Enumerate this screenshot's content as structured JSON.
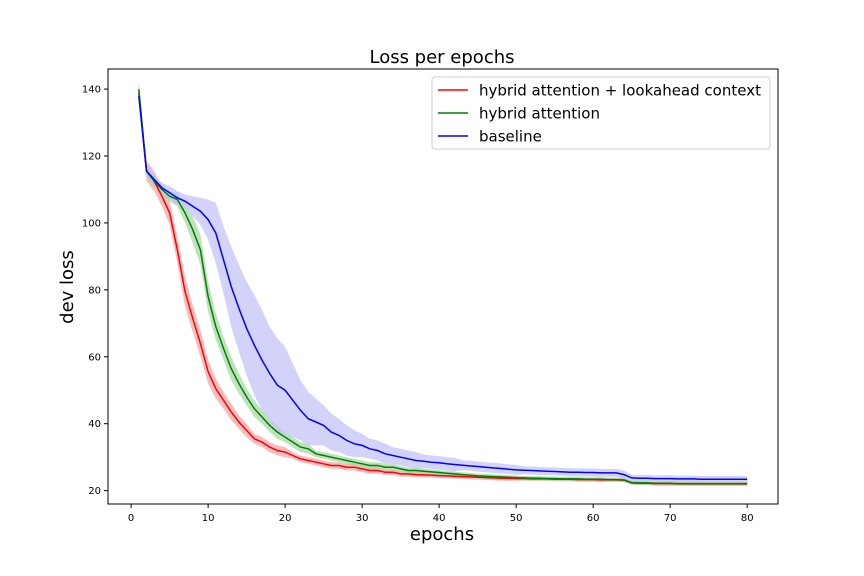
{
  "chart_data": {
    "type": "line",
    "title": "Loss per epochs",
    "xlabel": "epochs",
    "ylabel": "dev loss",
    "xlim": [
      -3,
      84
    ],
    "ylim": [
      16,
      146
    ],
    "xticks": [
      0,
      10,
      20,
      30,
      40,
      50,
      60,
      70,
      80
    ],
    "yticks": [
      20,
      40,
      60,
      80,
      100,
      120,
      140
    ],
    "grid": false,
    "legend_position": "top-right",
    "x": [
      1,
      2,
      3,
      4,
      5,
      6,
      7,
      8,
      9,
      10,
      11,
      12,
      13,
      14,
      15,
      16,
      17,
      18,
      19,
      20,
      21,
      22,
      23,
      24,
      25,
      26,
      27,
      28,
      29,
      30,
      31,
      32,
      33,
      34,
      35,
      36,
      37,
      38,
      39,
      40,
      41,
      42,
      43,
      44,
      45,
      46,
      47,
      48,
      49,
      50,
      51,
      52,
      53,
      54,
      55,
      56,
      57,
      58,
      59,
      60,
      61,
      62,
      63,
      64,
      65,
      66,
      67,
      68,
      69,
      70,
      71,
      72,
      73,
      74,
      75,
      76,
      77,
      78,
      79,
      80
    ],
    "series": [
      {
        "name": "hybrid attention + lookahead context",
        "color": "#ff0000",
        "fill": "#f4a6a6",
        "values": [
          139,
          115.5,
          112.5,
          108,
          103,
          92,
          79.5,
          71.5,
          64,
          55.5,
          50.5,
          47,
          43.5,
          40.5,
          38,
          35.5,
          34.5,
          33,
          32,
          31.5,
          30.5,
          29.5,
          29,
          28.5,
          28,
          27.5,
          27.5,
          27,
          27,
          26.5,
          26,
          26,
          25.5,
          25.5,
          25,
          25,
          24.8,
          24.7,
          24.6,
          24.5,
          24.4,
          24.3,
          24.2,
          24.1,
          24,
          23.9,
          23.8,
          23.7,
          23.7,
          23.6,
          23.6,
          23.5,
          23.5,
          23.5,
          23.4,
          23.4,
          23.4,
          23.3,
          23.3,
          23.3,
          23.2,
          23.2,
          23.2,
          23.1,
          22.3,
          22.2,
          22.2,
          22.1,
          22.1,
          22.1,
          22,
          22,
          22,
          22,
          22,
          22,
          22,
          22,
          22,
          22
        ],
        "band": [
          3,
          3,
          3,
          3,
          3.5,
          4,
          4.5,
          4,
          4,
          3.5,
          3,
          2.5,
          2.5,
          2,
          2,
          1.5,
          1.5,
          1.5,
          1.5,
          1.5,
          1,
          1,
          1,
          1,
          1,
          1,
          1,
          1,
          1,
          1,
          1,
          1,
          0.8,
          0.8,
          0.8,
          0.8,
          0.8,
          0.8,
          0.8,
          0.8,
          0.7,
          0.7,
          0.7,
          0.7,
          0.7,
          0.7,
          0.7,
          0.7,
          0.7,
          0.7,
          0.6,
          0.6,
          0.6,
          0.6,
          0.6,
          0.6,
          0.6,
          0.6,
          0.6,
          0.6,
          0.6,
          0.6,
          0.6,
          0.6,
          0.6,
          0.6,
          0.6,
          0.6,
          0.6,
          0.6,
          0.6,
          0.6,
          0.6,
          0.6,
          0.6,
          0.6,
          0.6,
          0.6,
          0.6,
          0.6
        ]
      },
      {
        "name": "hybrid attention",
        "color": "#008000",
        "fill": "#a8d8a8",
        "values": [
          140,
          115.5,
          112.5,
          110,
          108,
          107,
          103,
          98,
          92,
          78,
          69,
          62.5,
          56.5,
          52,
          48,
          44.5,
          42,
          39.5,
          37.5,
          36,
          34.5,
          33,
          32.5,
          31,
          30.5,
          30,
          29.5,
          29,
          28.5,
          28,
          27.5,
          27.5,
          27,
          27,
          26.5,
          26,
          26,
          25.8,
          25.6,
          25.4,
          25.2,
          25,
          24.8,
          24.6,
          24.4,
          24.3,
          24.2,
          24.1,
          24,
          23.9,
          23.8,
          23.7,
          23.7,
          23.6,
          23.6,
          23.5,
          23.5,
          23.5,
          23.4,
          23.4,
          23.4,
          23.3,
          23.3,
          23.2,
          22.4,
          22.3,
          22.3,
          22.2,
          22.2,
          22.2,
          22.1,
          22.1,
          22.1,
          22.1,
          22.1,
          22.1,
          22.1,
          22.1,
          22.1,
          22.1
        ],
        "band": [
          2,
          2,
          1.5,
          1.5,
          1.5,
          2,
          3,
          4,
          4.5,
          4.5,
          4,
          3.5,
          3.5,
          3,
          2.5,
          2.5,
          2,
          2,
          2,
          1.5,
          1.5,
          1.5,
          1.5,
          1,
          1,
          1,
          1,
          1,
          1,
          1,
          1,
          1,
          1,
          1,
          0.8,
          0.8,
          0.8,
          0.8,
          0.8,
          0.8,
          0.7,
          0.7,
          0.7,
          0.7,
          0.7,
          0.7,
          0.7,
          0.7,
          0.6,
          0.6,
          0.6,
          0.6,
          0.6,
          0.6,
          0.6,
          0.6,
          0.6,
          0.6,
          0.6,
          0.6,
          0.6,
          0.6,
          0.6,
          0.6,
          0.6,
          0.6,
          0.6,
          0.6,
          0.6,
          0.6,
          0.6,
          0.6,
          0.6,
          0.6,
          0.6,
          0.6,
          0.6,
          0.6,
          0.6,
          0.6
        ]
      },
      {
        "name": "baseline",
        "color": "#0000ff",
        "fill": "#c4c4f8",
        "values": [
          138,
          115.5,
          113,
          110.5,
          109,
          107.5,
          106.5,
          105,
          103.5,
          101,
          97,
          89,
          81,
          74.5,
          68.5,
          63.5,
          59,
          55,
          51.5,
          50,
          47,
          44,
          41.5,
          40.5,
          39.5,
          37.5,
          36.5,
          35,
          34,
          33.5,
          32.5,
          32,
          31,
          30.5,
          30,
          29.5,
          29,
          28.8,
          28.5,
          28.3,
          28,
          27.8,
          27.6,
          27.4,
          27.2,
          27,
          26.8,
          26.6,
          26.4,
          26.2,
          26.1,
          26,
          25.9,
          25.8,
          25.7,
          25.6,
          25.5,
          25.5,
          25.4,
          25.4,
          25.3,
          25.3,
          25.3,
          24.8,
          23.8,
          23.7,
          23.7,
          23.6,
          23.6,
          23.6,
          23.5,
          23.5,
          23.5,
          23.4,
          23.4,
          23.4,
          23.4,
          23.4,
          23.4,
          23.4
        ],
        "band": [
          2,
          1.5,
          1.5,
          1.5,
          2,
          2,
          2,
          3,
          4,
          6,
          9,
          10,
          12,
          13,
          14,
          15,
          15,
          14,
          14,
          13,
          11,
          9,
          8,
          7,
          6,
          5.5,
          5,
          4.5,
          4,
          3.5,
          3,
          3,
          3,
          2.5,
          2.5,
          2.5,
          2.5,
          2,
          2,
          2,
          2,
          2,
          1.5,
          1.5,
          1.5,
          1.5,
          1.5,
          1.5,
          1.5,
          1.5,
          1.2,
          1.2,
          1.2,
          1.2,
          1.2,
          1.2,
          1.2,
          1.2,
          1.2,
          1.2,
          1.2,
          1.2,
          1.2,
          1.2,
          1,
          1,
          1,
          1,
          1,
          1,
          1,
          1,
          1,
          1,
          1,
          1,
          1,
          1,
          1,
          1
        ]
      }
    ]
  }
}
